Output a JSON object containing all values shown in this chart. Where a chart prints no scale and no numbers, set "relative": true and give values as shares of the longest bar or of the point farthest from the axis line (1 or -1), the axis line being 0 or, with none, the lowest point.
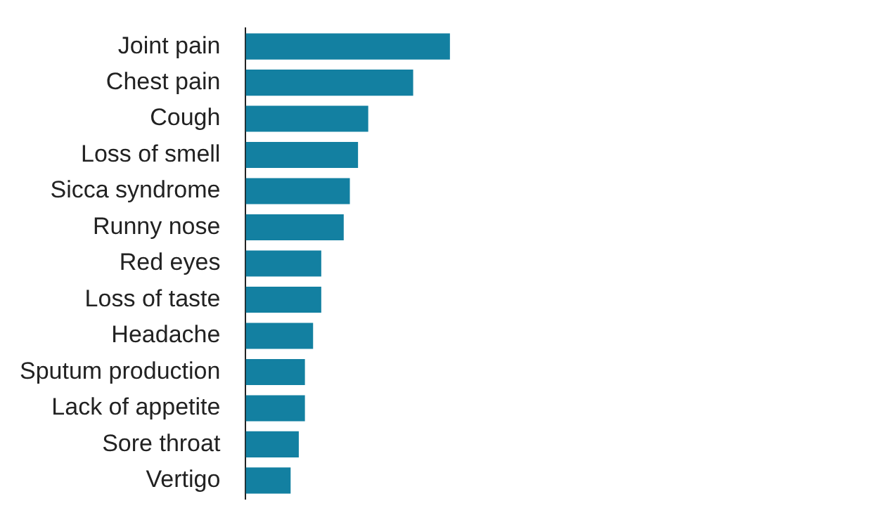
{
  "chart_data": {
    "type": "bar",
    "orientation": "horizontal",
    "relative": true,
    "categories": [
      "Joint pain",
      "Chest pain",
      "Cough",
      "Loss of smell",
      "Sicca syndrome",
      "Runny nose",
      "Red eyes",
      "Loss of taste",
      "Headache",
      "Sputum production",
      "Lack of appetite",
      "Sore throat",
      "Vertigo"
    ],
    "values": [
      1,
      0.82,
      0.6,
      0.55,
      0.51,
      0.48,
      0.37,
      0.37,
      0.33,
      0.29,
      0.29,
      0.26,
      0.22
    ],
    "color": "#1380a1"
  }
}
